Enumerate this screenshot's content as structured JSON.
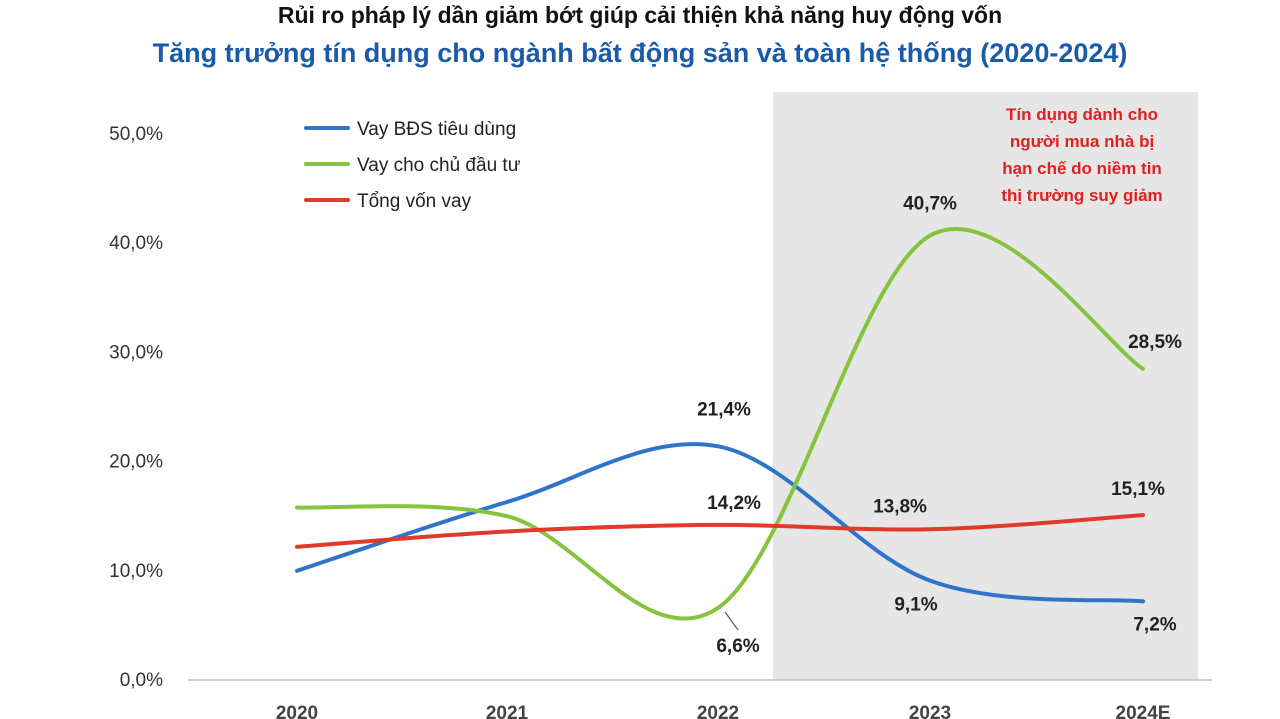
{
  "header": {
    "title": "Rủi ro pháp lý dần giảm bớt giúp cải thiện khả năng huy động vốn",
    "subtitle": "Tăng trưởng tín dụng cho ngành bất động sản và toàn hệ thống (2020-2024)"
  },
  "annotation": {
    "lines": [
      "Tín dụng dành cho",
      "người mua nhà bị",
      "hạn chế do niềm tin",
      "thị trường suy giảm"
    ],
    "color": "#e02020"
  },
  "chart_data": {
    "type": "line",
    "categories": [
      "2020",
      "2021",
      "2022",
      "2023",
      "2024E"
    ],
    "ylim": [
      0,
      50
    ],
    "yticks": [
      "0,0%",
      "10,0%",
      "20,0%",
      "30,0%",
      "40,0%",
      "50,0%"
    ],
    "xlabel": "",
    "ylabel": "",
    "grid": false,
    "legend_position": "top-left",
    "highlight_region": {
      "from": "2023",
      "to": "2024E"
    },
    "series": [
      {
        "name": "Vay BĐS tiêu dùng",
        "color": "#2f74c8",
        "values": [
          10.0,
          16.3,
          21.4,
          9.1,
          7.2
        ],
        "labels": [
          "",
          "",
          "21,4%",
          "9,1%",
          "7,2%"
        ]
      },
      {
        "name": "Vay cho chủ đầu tư",
        "color": "#86c33f",
        "values": [
          15.8,
          15.0,
          6.6,
          40.7,
          28.5
        ],
        "labels": [
          "",
          "",
          "6,6%",
          "40,7%",
          "28,5%"
        ]
      },
      {
        "name": "Tổng vốn vay",
        "color": "#e03a2a",
        "values": [
          12.2,
          13.6,
          14.2,
          13.8,
          15.1
        ],
        "labels": [
          "",
          "",
          "14,2%",
          "13,8%",
          "15,1%"
        ]
      }
    ]
  }
}
